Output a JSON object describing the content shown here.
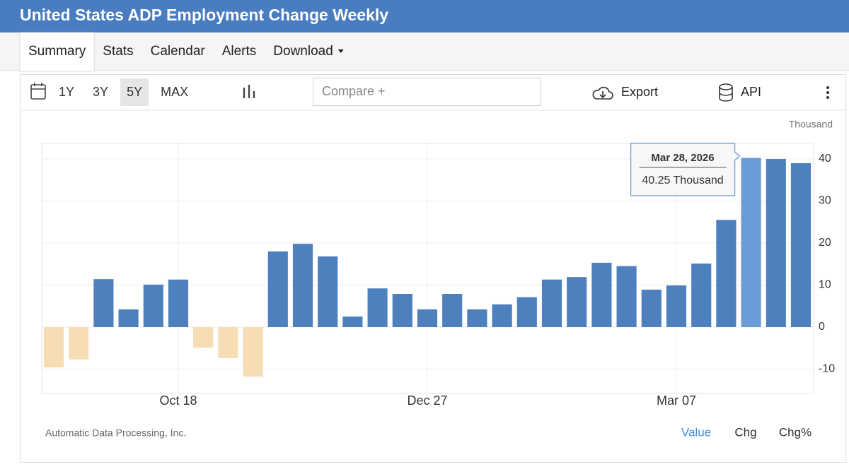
{
  "header": {
    "title": "United States ADP Employment Change Weekly"
  },
  "nav": {
    "tabs": [
      "Summary",
      "Stats",
      "Calendar",
      "Alerts",
      "Download"
    ],
    "active": 0
  },
  "toolbar": {
    "ranges": [
      "1Y",
      "3Y",
      "5Y",
      "MAX"
    ],
    "active_range": 2,
    "compare": "Compare +",
    "export": "Export",
    "api": "API"
  },
  "chart_data": {
    "type": "bar",
    "unit": "Thousand",
    "categories": [
      null,
      null,
      null,
      null,
      null,
      "Oct 18",
      null,
      null,
      null,
      null,
      null,
      null,
      null,
      null,
      null,
      "Dec 27",
      null,
      null,
      null,
      null,
      null,
      null,
      null,
      null,
      null,
      "Mar 07",
      null,
      null,
      null,
      null,
      null
    ],
    "values": [
      -9.6,
      -7.7,
      11.4,
      4.2,
      10.1,
      11.3,
      -4.9,
      -7.4,
      -11.8,
      18.0,
      19.8,
      16.8,
      2.5,
      9.2,
      7.9,
      4.2,
      7.9,
      4.2,
      5.4,
      7.1,
      11.3,
      11.9,
      15.3,
      14.5,
      8.9,
      9.9,
      15.1,
      25.5,
      40.25,
      40.0,
      39.0
    ],
    "color": "#4e80bd",
    "negative_color": "#f6ddb3",
    "highlight_color": "#6b9bd9",
    "ylim": [
      -15.8,
      43.7
    ],
    "yticks": [
      -10,
      0,
      10,
      20,
      30,
      40
    ],
    "grid": true,
    "tooltip": {
      "index": 28,
      "date": "Mar 28, 2026",
      "value_label": "40.25 Thousand"
    }
  },
  "footer": {
    "source": "Automatic Data Processing, Inc.",
    "modes": [
      "Value",
      "Chg",
      "Chg%"
    ],
    "active_mode": 0
  }
}
